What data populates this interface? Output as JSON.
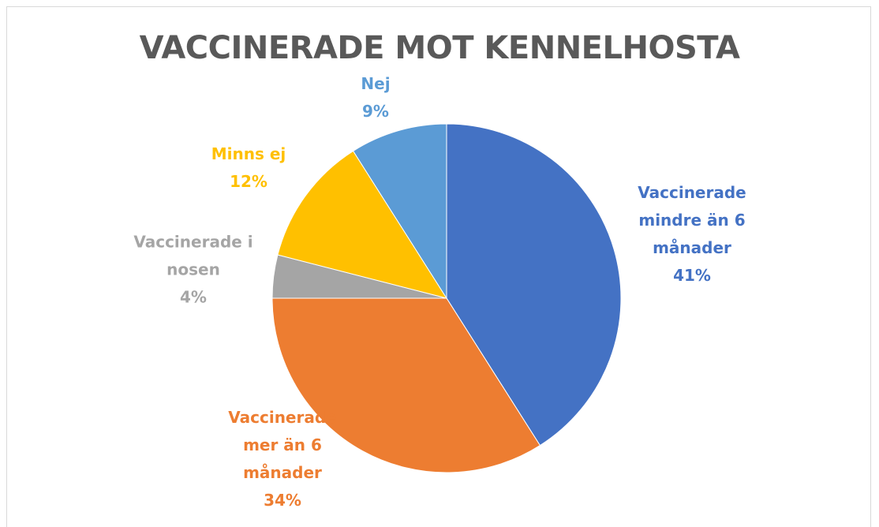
{
  "chart_data": {
    "type": "pie",
    "title": "VACCINERADE MOT KENNELHOSTA",
    "categories": [
      "Vaccinerade mindre än 6 månader",
      "Vaccinerade mer än 6 månader",
      "Vaccinerade i nosen",
      "Minns ej",
      "Nej"
    ],
    "values": [
      41,
      34,
      4,
      12,
      9
    ],
    "value_labels": [
      "41%",
      "34%",
      "4%",
      "12%",
      "9%"
    ],
    "colors": [
      "#4472c4",
      "#ed7d31",
      "#a5a5a5",
      "#ffc000",
      "#5b9bd5"
    ]
  }
}
